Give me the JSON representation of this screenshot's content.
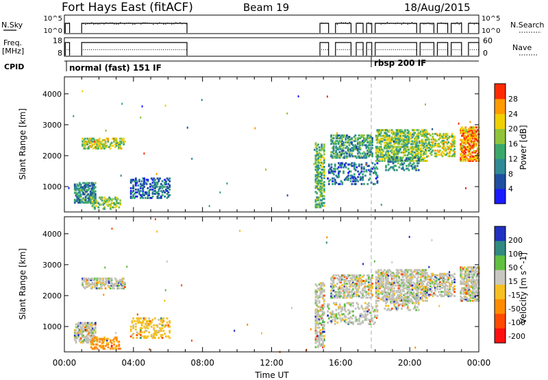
{
  "header": {
    "station": "Fort Hays East (fitACF)",
    "beam": "Beam 19",
    "date": "18/Aug/2015"
  },
  "side_labels": {
    "nsky": "N.Sky",
    "freq_line1": "Freq.",
    "freq_line2": "[MHz]",
    "cpid": "CPID",
    "nsearch": "N.Search",
    "nave": "Nave"
  },
  "strip_ticks": {
    "nsky_left": [
      "10^5",
      "10^0"
    ],
    "nsky_right": [
      "10^5",
      "10^0"
    ],
    "freq_left": [
      "18",
      "8"
    ],
    "nave_right": [
      "60",
      "0"
    ]
  },
  "cpid_modes": [
    {
      "label": "normal (fast) 151 IF",
      "start_h": 0.0
    },
    {
      "label": "rbsp 200 IF",
      "start_h": 18.0
    }
  ],
  "chart_data": [
    {
      "type": "heatmap",
      "name": "power",
      "ylabel": "Slant Range [km]",
      "xlabel": "Time UT",
      "x_ticks": [
        "00:00",
        "04:00",
        "08:00",
        "12:00",
        "16:00",
        "20:00",
        "00:00"
      ],
      "y_ticks": [
        "1000",
        "2000",
        "3000",
        "4000"
      ],
      "xlim_hours": [
        0,
        24
      ],
      "ylim_km": [
        180,
        4550
      ],
      "colorbar": {
        "label": "Power [dB]",
        "ticks": [
          "4",
          "8",
          "12",
          "16",
          "20",
          "24",
          "28"
        ],
        "range": [
          0,
          30
        ]
      },
      "regions": [
        {
          "t0": 0.55,
          "t1": 1.8,
          "r0": 450,
          "r1": 1100,
          "density": 0.55,
          "v": 10
        },
        {
          "t0": 1.0,
          "t1": 3.5,
          "r0": 2200,
          "r1": 2550,
          "density": 0.45,
          "v": 18
        },
        {
          "t0": 1.5,
          "t1": 3.2,
          "r0": 250,
          "r1": 650,
          "density": 0.35,
          "v": 16
        },
        {
          "t0": 3.8,
          "t1": 6.1,
          "r0": 600,
          "r1": 1250,
          "density": 0.35,
          "v": 8
        },
        {
          "t0": 14.5,
          "t1": 15.0,
          "r0": 300,
          "r1": 2400,
          "density": 0.5,
          "v": 14
        },
        {
          "t0": 15.4,
          "t1": 17.8,
          "r0": 1900,
          "r1": 2650,
          "density": 0.45,
          "v": 12
        },
        {
          "t0": 15.2,
          "t1": 18.1,
          "r0": 1050,
          "r1": 1750,
          "density": 0.25,
          "v": 8
        },
        {
          "t0": 18.0,
          "t1": 21.0,
          "r0": 1800,
          "r1": 2800,
          "density": 0.5,
          "v": 16
        },
        {
          "t0": 18.5,
          "t1": 20.5,
          "r0": 1500,
          "r1": 1950,
          "density": 0.3,
          "v": 10
        },
        {
          "t0": 21.0,
          "t1": 22.6,
          "r0": 1950,
          "r1": 2700,
          "density": 0.4,
          "v": 18
        },
        {
          "t0": 22.9,
          "t1": 24.0,
          "r0": 1800,
          "r1": 2900,
          "density": 0.6,
          "v": 24
        }
      ]
    },
    {
      "type": "heatmap",
      "name": "velocity",
      "ylabel": "Slant Range [km]",
      "xlabel": "Time UT",
      "x_ticks": [
        "00:00",
        "04:00",
        "08:00",
        "12:00",
        "16:00",
        "20:00",
        "00:00"
      ],
      "y_ticks": [
        "1000",
        "2000",
        "3000",
        "4000"
      ],
      "xlim_hours": [
        0,
        24
      ],
      "ylim_km": [
        180,
        4550
      ],
      "colorbar": {
        "label": "Velocity [m s^-1]",
        "ticks": [
          "200",
          "100",
          "50",
          "15",
          "-15",
          "-50",
          "-100",
          "-200"
        ]
      },
      "regions": [
        {
          "t0": 0.55,
          "t1": 1.8,
          "r0": 450,
          "r1": 1100,
          "density": 0.6,
          "v": 0
        },
        {
          "t0": 1.0,
          "t1": 3.5,
          "r0": 2200,
          "r1": 2550,
          "density": 0.5,
          "v": 0
        },
        {
          "t0": 1.5,
          "t1": 3.2,
          "r0": 250,
          "r1": 650,
          "density": 0.35,
          "v": -60
        },
        {
          "t0": 3.8,
          "t1": 6.1,
          "r0": 600,
          "r1": 1250,
          "density": 0.3,
          "v": -30
        },
        {
          "t0": 14.5,
          "t1": 15.0,
          "r0": 300,
          "r1": 2400,
          "density": 0.5,
          "v": 0
        },
        {
          "t0": 15.4,
          "t1": 17.8,
          "r0": 1900,
          "r1": 2650,
          "density": 0.45,
          "v": 0
        },
        {
          "t0": 15.2,
          "t1": 18.1,
          "r0": 1050,
          "r1": 1750,
          "density": 0.25,
          "v": 0
        },
        {
          "t0": 18.0,
          "t1": 21.0,
          "r0": 1800,
          "r1": 2800,
          "density": 0.5,
          "v": 0
        },
        {
          "t0": 18.5,
          "t1": 20.5,
          "r0": 1500,
          "r1": 1950,
          "density": 0.3,
          "v": 0
        },
        {
          "t0": 21.0,
          "t1": 22.6,
          "r0": 1950,
          "r1": 2700,
          "density": 0.4,
          "v": 0
        },
        {
          "t0": 22.9,
          "t1": 24.0,
          "r0": 1800,
          "r1": 2900,
          "density": 0.6,
          "v": 0
        }
      ]
    }
  ],
  "colors": {
    "power_scale": [
      "#1a1aff",
      "#1f4fa0",
      "#2f8a96",
      "#3aa86a",
      "#8fc43a",
      "#f0d000",
      "#ff9a00",
      "#ff2a00"
    ],
    "velocity_scale": [
      "#ff1010",
      "#ff4a00",
      "#ff8c00",
      "#f5c020",
      "#c8c8c0",
      "#60c040",
      "#2f8a80",
      "#2030c0"
    ],
    "ground_scatter": "#c0c0b8"
  }
}
